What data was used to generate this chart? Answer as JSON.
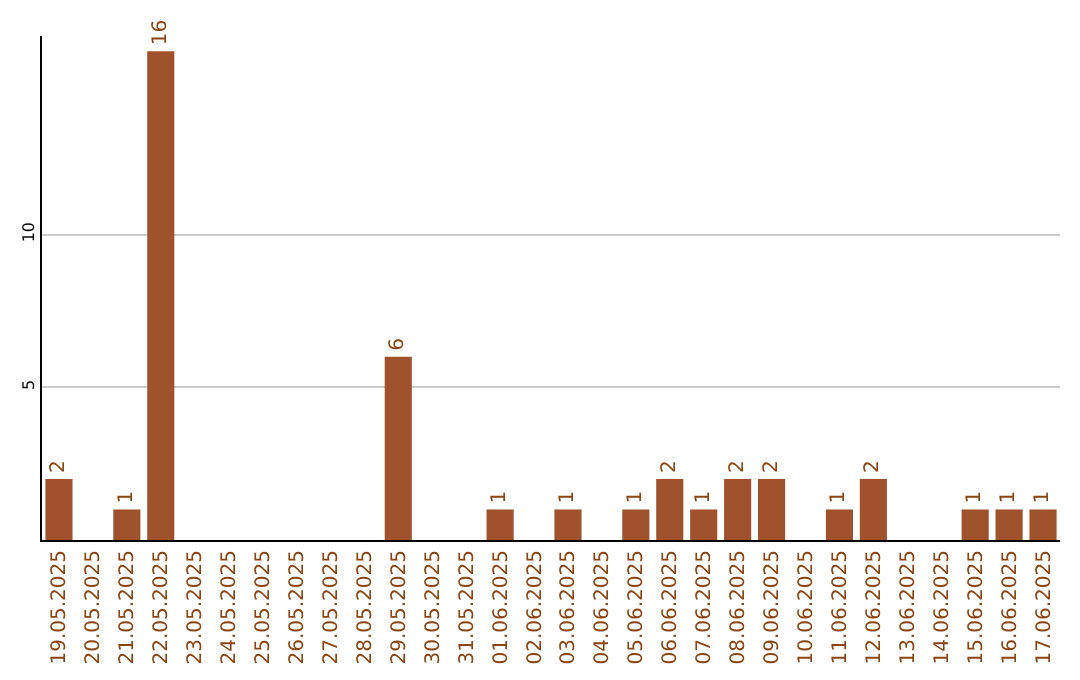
{
  "chart_data": {
    "type": "bar",
    "categories": [
      "19.05.2025",
      "20.05.2025",
      "21.05.2025",
      "22.05.2025",
      "23.05.2025",
      "24.05.2025",
      "25.05.2025",
      "26.05.2025",
      "27.05.2025",
      "28.05.2025",
      "29.05.2025",
      "30.05.2025",
      "31.05.2025",
      "01.06.2025",
      "02.06.2025",
      "03.06.2025",
      "04.06.2025",
      "05.06.2025",
      "06.06.2025",
      "07.06.2025",
      "08.06.2025",
      "09.06.2025",
      "10.06.2025",
      "11.06.2025",
      "12.06.2025",
      "13.06.2025",
      "14.06.2025",
      "15.06.2025",
      "16.06.2025",
      "17.06.2025"
    ],
    "values": [
      2,
      0,
      1,
      16,
      0,
      0,
      0,
      0,
      0,
      0,
      6,
      0,
      0,
      1,
      0,
      1,
      0,
      1,
      2,
      1,
      2,
      2,
      0,
      1,
      2,
      0,
      0,
      1,
      1,
      1
    ],
    "value_labels": [
      "2",
      null,
      "1",
      "16",
      null,
      null,
      null,
      null,
      null,
      null,
      "6",
      null,
      null,
      "1",
      null,
      "1",
      null,
      "1",
      "2",
      "1",
      "2",
      "2",
      null,
      "1",
      "2",
      null,
      null,
      "1",
      "1",
      "1"
    ],
    "color": "#a0522d",
    "ylim": [
      0,
      16.5
    ],
    "yticks": [
      5,
      10
    ],
    "grid": "y"
  }
}
